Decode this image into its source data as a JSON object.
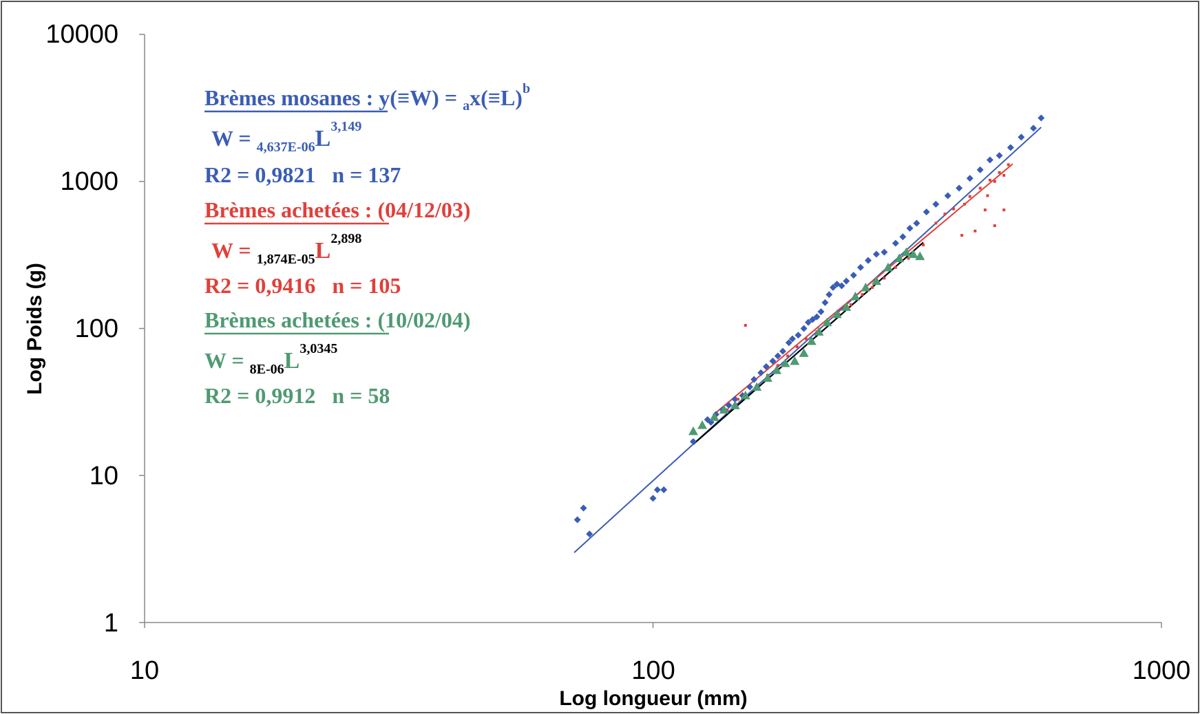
{
  "chart_data": {
    "type": "scatter",
    "xscale": "log",
    "yscale": "log",
    "xlim": [
      10,
      1000
    ],
    "ylim": [
      1,
      10000
    ],
    "xlabel": "Log longueur (mm)",
    "ylabel": "Log Poids (g)",
    "xticks": [
      "10",
      "100",
      "1000"
    ],
    "yticks": [
      "1",
      "10",
      "100",
      "1000",
      "10000"
    ],
    "grid": false,
    "colors": {
      "mosanes": "#3a5db5",
      "achetees_0412": "#e0403a",
      "achetees_1002": "#4f9a72",
      "trend": "#000000"
    },
    "series": [
      {
        "marker": "diamond",
        "color": "#3a5db5",
        "points": [
          [
            71,
            5
          ],
          [
            73,
            6
          ],
          [
            75,
            4
          ],
          [
            100,
            7
          ],
          [
            102,
            8
          ],
          [
            105,
            8
          ],
          [
            120,
            17
          ],
          [
            128,
            24
          ],
          [
            130,
            23
          ],
          [
            133,
            26
          ],
          [
            137,
            28
          ],
          [
            141,
            30
          ],
          [
            145,
            33
          ],
          [
            150,
            35
          ],
          [
            155,
            40
          ],
          [
            158,
            45
          ],
          [
            163,
            50
          ],
          [
            167,
            55
          ],
          [
            172,
            60
          ],
          [
            176,
            65
          ],
          [
            180,
            70
          ],
          [
            185,
            80
          ],
          [
            188,
            85
          ],
          [
            193,
            90
          ],
          [
            198,
            100
          ],
          [
            202,
            110
          ],
          [
            206,
            115
          ],
          [
            210,
            120
          ],
          [
            214,
            130
          ],
          [
            218,
            150
          ],
          [
            222,
            170
          ],
          [
            226,
            190
          ],
          [
            230,
            200
          ],
          [
            235,
            195
          ],
          [
            240,
            210
          ],
          [
            248,
            230
          ],
          [
            256,
            260
          ],
          [
            265,
            290
          ],
          [
            275,
            320
          ],
          [
            285,
            330
          ],
          [
            300,
            380
          ],
          [
            310,
            420
          ],
          [
            320,
            480
          ],
          [
            330,
            520
          ],
          [
            345,
            620
          ],
          [
            360,
            700
          ],
          [
            380,
            800
          ],
          [
            400,
            900
          ],
          [
            420,
            1050
          ],
          [
            440,
            1200
          ],
          [
            460,
            1400
          ],
          [
            480,
            1500
          ],
          [
            505,
            1700
          ],
          [
            530,
            2000
          ],
          [
            560,
            2300
          ],
          [
            580,
            2700
          ]
        ]
      },
      {
        "marker": "dot",
        "color": "#e0403a",
        "points": [
          [
            133,
            24
          ],
          [
            140,
            28
          ],
          [
            147,
            33
          ],
          [
            152,
            105
          ],
          [
            160,
            40
          ],
          [
            168,
            48
          ],
          [
            176,
            56
          ],
          [
            184,
            65
          ],
          [
            192,
            75
          ],
          [
            200,
            85
          ],
          [
            210,
            95
          ],
          [
            220,
            110
          ],
          [
            232,
            125
          ],
          [
            245,
            145
          ],
          [
            258,
            170
          ],
          [
            270,
            190
          ],
          [
            285,
            220
          ],
          [
            300,
            260
          ],
          [
            318,
            300
          ],
          [
            340,
            370
          ],
          [
            360,
            520
          ],
          [
            375,
            600
          ],
          [
            390,
            650
          ],
          [
            405,
            430
          ],
          [
            410,
            700
          ],
          [
            420,
            790
          ],
          [
            430,
            460
          ],
          [
            440,
            900
          ],
          [
            450,
            640
          ],
          [
            460,
            1020
          ],
          [
            470,
            500
          ],
          [
            480,
            1150
          ],
          [
            490,
            640
          ],
          [
            500,
            1300
          ],
          [
            490,
            1100
          ],
          [
            470,
            1000
          ],
          [
            455,
            800
          ]
        ]
      },
      {
        "marker": "triangle",
        "color": "#4f9a72",
        "points": [
          [
            120,
            20
          ],
          [
            125,
            22
          ],
          [
            132,
            25
          ],
          [
            138,
            28
          ],
          [
            145,
            30
          ],
          [
            152,
            35
          ],
          [
            160,
            40
          ],
          [
            168,
            46
          ],
          [
            175,
            52
          ],
          [
            182,
            58
          ],
          [
            190,
            60
          ],
          [
            198,
            68
          ],
          [
            205,
            82
          ],
          [
            212,
            95
          ],
          [
            220,
            110
          ],
          [
            230,
            125
          ],
          [
            240,
            140
          ],
          [
            250,
            165
          ],
          [
            262,
            190
          ],
          [
            275,
            210
          ],
          [
            290,
            260
          ],
          [
            305,
            300
          ],
          [
            315,
            330
          ],
          [
            325,
            320
          ],
          [
            335,
            310
          ]
        ]
      }
    ],
    "fits": [
      {
        "color": "#3a5db5",
        "a": 4.637e-06,
        "b": 3.149,
        "x_range": [
          70,
          580
        ]
      },
      {
        "color": "#e0403a",
        "a": 1.874e-05,
        "b": 2.898,
        "x_range": [
          133,
          510
        ]
      },
      {
        "color": "#4f9a72",
        "a": 8e-06,
        "b": 3.0345,
        "x_range": [
          120,
          340
        ]
      },
      {
        "color": "#000000",
        "a": 8e-06,
        "b": 3.0345,
        "x_range": [
          120,
          340
        ]
      }
    ],
    "annotations": {
      "mosanes_title": "Brèmes mosanes",
      "mosanes_formula_pre": " : y(≡W) = ",
      "mosanes_formula_sub": "a",
      "mosanes_formula_post": "x(≡L)",
      "mosanes_formula_sup": "b",
      "mosanes_eq_pre": "W = ",
      "mosanes_eq_sub": "4,637E-06",
      "mosanes_eq_L": "L",
      "mosanes_eq_sup": "3,149",
      "mosanes_stats": "R2 = 0,9821   n = 137",
      "achetees1_title": "Brèmes achetées",
      "achetees1_date": " : (04/12/03)",
      "achetees1_eq_pre": "W = ",
      "achetees1_eq_sub": "1,874E-05",
      "achetees1_eq_L": "L",
      "achetees1_eq_sup": "2,898",
      "achetees1_stats": "R2 = 0,9416   n = 105",
      "achetees2_title": "Brèmes achetées",
      "achetees2_date": " : (10/02/04)",
      "achetees2_eq_pre": "W = ",
      "achetees2_eq_sub": "8E-06",
      "achetees2_eq_L": "L",
      "achetees2_eq_sup": "3,0345",
      "achetees2_stats": "R2 = 0,9912   n = 58"
    }
  }
}
